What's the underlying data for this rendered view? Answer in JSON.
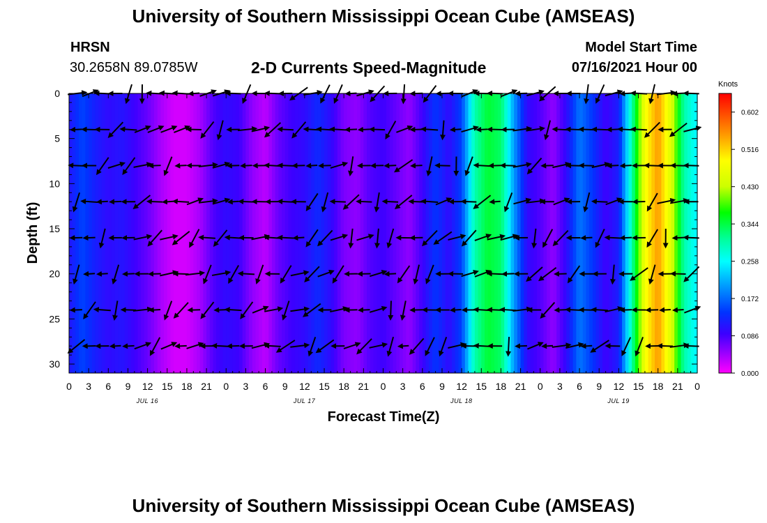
{
  "header": {
    "title_top": "University of Southern Mississippi Ocean Cube (AMSEAS)",
    "title_bottom": "University of Southern Mississippi Ocean Cube (AMSEAS)",
    "station": "HRSN",
    "coords": "30.2658N  89.0785W",
    "plot_title": "2-D Currents Speed-Magnitude",
    "model_label": "Model Start Time",
    "model_time": "07/16/2021 Hour 00"
  },
  "chart_data": {
    "type": "heatmap",
    "title": "2-D Currents Speed-Magnitude",
    "xlabel": "Forecast Time(Z)",
    "ylabel": "Depth (ft)",
    "x_tick_labels": [
      "0",
      "3",
      "6",
      "9",
      "12",
      "15",
      "18",
      "21",
      "0",
      "3",
      "6",
      "9",
      "12",
      "15",
      "18",
      "21",
      "0",
      "3",
      "6",
      "9",
      "12",
      "15",
      "18",
      "21",
      "0",
      "3",
      "6",
      "9",
      "12",
      "15",
      "18",
      "21",
      "0"
    ],
    "x_range_hours": [
      0,
      96
    ],
    "date_labels": [
      {
        "label": "JUL 16",
        "hour": 12
      },
      {
        "label": "JUL 17",
        "hour": 36
      },
      {
        "label": "JUL 18",
        "hour": 60
      },
      {
        "label": "JUL 19",
        "hour": 84
      }
    ],
    "y_ticks": [
      0,
      5,
      10,
      15,
      20,
      25,
      30
    ],
    "y_range": [
      0,
      31
    ],
    "y_inverted": true,
    "colorbar": {
      "title": "Knots",
      "tick_labels": [
        "0.602",
        "0.516",
        "0.430",
        "0.344",
        "0.258",
        "0.172",
        "0.086",
        "0.000"
      ],
      "range": [
        0,
        0.645
      ],
      "stops": [
        {
          "v": 0.0,
          "c": "#ff00ff"
        },
        {
          "v": 0.043,
          "c": "#a000ff"
        },
        {
          "v": 0.09,
          "c": "#3c00ff"
        },
        {
          "v": 0.14,
          "c": "#0033ff"
        },
        {
          "v": 0.2,
          "c": "#0099ff"
        },
        {
          "v": 0.258,
          "c": "#00ffff"
        },
        {
          "v": 0.31,
          "c": "#00ff99"
        },
        {
          "v": 0.37,
          "c": "#00ff00"
        },
        {
          "v": 0.43,
          "c": "#ccff00"
        },
        {
          "v": 0.49,
          "c": "#ffff00"
        },
        {
          "v": 0.55,
          "c": "#ff9900"
        },
        {
          "v": 0.645,
          "c": "#ff0000"
        }
      ]
    },
    "speed_profile": [
      {
        "hour": 0,
        "speed": 0.11
      },
      {
        "hour": 2,
        "speed": 0.15
      },
      {
        "hour": 4,
        "speed": 0.12
      },
      {
        "hour": 6,
        "speed": 0.1
      },
      {
        "hour": 8,
        "speed": 0.11
      },
      {
        "hour": 10,
        "speed": 0.09
      },
      {
        "hour": 12,
        "speed": 0.07
      },
      {
        "hour": 14,
        "speed": 0.04
      },
      {
        "hour": 16,
        "speed": 0.02
      },
      {
        "hour": 18,
        "speed": 0.02
      },
      {
        "hour": 20,
        "speed": 0.04
      },
      {
        "hour": 22,
        "speed": 0.08
      },
      {
        "hour": 24,
        "speed": 0.1
      },
      {
        "hour": 26,
        "speed": 0.09
      },
      {
        "hour": 28,
        "speed": 0.05
      },
      {
        "hour": 30,
        "speed": 0.03
      },
      {
        "hour": 32,
        "speed": 0.07
      },
      {
        "hour": 34,
        "speed": 0.09
      },
      {
        "hour": 36,
        "speed": 0.1
      },
      {
        "hour": 38,
        "speed": 0.13
      },
      {
        "hour": 40,
        "speed": 0.1
      },
      {
        "hour": 42,
        "speed": 0.06
      },
      {
        "hour": 44,
        "speed": 0.05
      },
      {
        "hour": 46,
        "speed": 0.08
      },
      {
        "hour": 48,
        "speed": 0.09
      },
      {
        "hour": 50,
        "speed": 0.07
      },
      {
        "hour": 52,
        "speed": 0.05
      },
      {
        "hour": 54,
        "speed": 0.09
      },
      {
        "hour": 56,
        "speed": 0.14
      },
      {
        "hour": 58,
        "speed": 0.1
      },
      {
        "hour": 60,
        "speed": 0.15
      },
      {
        "hour": 62,
        "speed": 0.3
      },
      {
        "hour": 64,
        "speed": 0.35
      },
      {
        "hour": 66,
        "speed": 0.33
      },
      {
        "hour": 68,
        "speed": 0.2
      },
      {
        "hour": 70,
        "speed": 0.1
      },
      {
        "hour": 72,
        "speed": 0.08
      },
      {
        "hour": 74,
        "speed": 0.05
      },
      {
        "hour": 76,
        "speed": 0.1
      },
      {
        "hour": 78,
        "speed": 0.18
      },
      {
        "hour": 80,
        "speed": 0.14
      },
      {
        "hour": 82,
        "speed": 0.09
      },
      {
        "hour": 84,
        "speed": 0.12
      },
      {
        "hour": 86,
        "speed": 0.3
      },
      {
        "hour": 88,
        "speed": 0.48
      },
      {
        "hour": 90,
        "speed": 0.55
      },
      {
        "hour": 92,
        "speed": 0.45
      },
      {
        "hour": 94,
        "speed": 0.3
      },
      {
        "hour": 96,
        "speed": 0.25
      }
    ],
    "vector_depths": [
      0,
      4,
      8,
      12,
      16,
      20,
      24,
      28
    ],
    "vector_hours": [
      0,
      2,
      4,
      6,
      8,
      10,
      12,
      14,
      16,
      18,
      20,
      22,
      24,
      26,
      28,
      30,
      32,
      34,
      36,
      38,
      40,
      42,
      44,
      46,
      48,
      50,
      52,
      54,
      56,
      58,
      60,
      62,
      64,
      66,
      68,
      70,
      72,
      74,
      76,
      78,
      80,
      82,
      84,
      86,
      88,
      90,
      92,
      94,
      96
    ]
  }
}
